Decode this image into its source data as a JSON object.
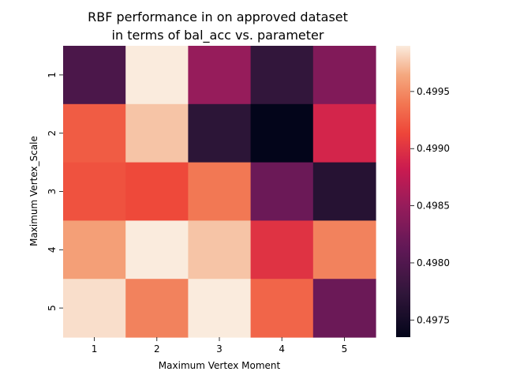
{
  "chart_data": {
    "type": "heatmap",
    "title_line1": "RBF performance in on approved dataset",
    "title_line2": "in terms of bal_acc vs. parameter",
    "xlabel": "Maximum Vertex Moment",
    "ylabel": "Maximum Vertex_Scale",
    "x_categories": [
      "1",
      "2",
      "3",
      "4",
      "5"
    ],
    "y_categories": [
      "1",
      "2",
      "3",
      "4",
      "5"
    ],
    "values": [
      [
        0.49795,
        0.4999,
        0.4985,
        0.49775,
        0.49835
      ],
      [
        0.49925,
        0.49975,
        0.4977,
        0.49735,
        0.4989
      ],
      [
        0.4992,
        0.49915,
        0.4994,
        0.4982,
        0.49765
      ],
      [
        0.4996,
        0.4999,
        0.49975,
        0.499,
        0.49945
      ],
      [
        0.49985,
        0.49945,
        0.4999,
        0.4993,
        0.4982
      ]
    ],
    "colorbar": {
      "min": 0.49735,
      "max": 0.4999,
      "ticks": [
        0.4975,
        0.498,
        0.4985,
        0.499,
        0.4995
      ],
      "tick_labels": [
        "0.4975",
        "0.4980",
        "0.4985",
        "0.4990",
        "0.4995"
      ]
    },
    "colormap": "rocket",
    "grid": false
  }
}
